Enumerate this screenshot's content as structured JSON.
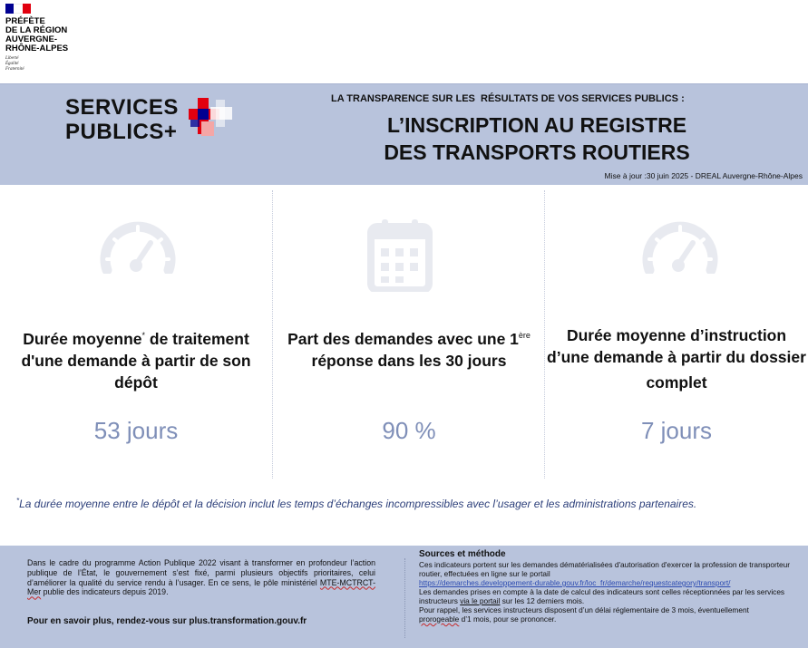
{
  "prefecture": {
    "name_lines": [
      "PRÉFÈTE",
      "DE LA RÉGION",
      "AUVERGNE-",
      "RHÔNE-ALPES"
    ],
    "motto_lines": [
      "Liberté",
      "Égalité",
      "Fraternité"
    ],
    "flag_colors": [
      "#000091",
      "#ffffff",
      "#e1000f"
    ]
  },
  "header": {
    "logo_lines": [
      "SERVICES",
      "PUBLICS+"
    ],
    "kicker": "LA TRANSPARENCE SUR LES  RÉSULTATS DE VOS SERVICES PUBLICS :",
    "title_lines": [
      "L’INSCRIPTION AU REGISTRE",
      "DES TRANSPORTS ROUTIERS"
    ],
    "update": "Mise à jour :30 juin 2025 - DREAL Auvergne-Rhône-Alpes"
  },
  "indicators": [
    {
      "icon": "speedometer-icon",
      "label_before": "Durée moyenne",
      "label_sup": "*",
      "label_after": " de traitement d'une demande à partir de son dépôt",
      "value": "53 jours"
    },
    {
      "icon": "calendar-icon",
      "label_before": "Part des demandes avec une 1",
      "label_sup": "ère",
      "label_after": " réponse dans les 30 jours",
      "value": "90 %"
    },
    {
      "icon": "speedometer-icon",
      "label_before": "Durée moyenne d’instruction d’une demande à partir du dossier complet",
      "label_sup": "",
      "label_after": "",
      "value": "7 jours"
    }
  ],
  "footnote": {
    "mark": "*",
    "text": "La durée moyenne entre le dépôt et la décision inclut les temps d’échanges incompressibles avec l’usager et les administrations partenaires."
  },
  "footer": {
    "left_text_before": "Dans le cadre du programme Action Publique 2022 visant à transformer en profondeur l’action publique de l’État, le gouvernement s’est fixé, parmi plusieurs objectifs prioritaires, celui d’améliorer la qualité du service rendu à l’usager. En ce sens, le pôle ministériel ",
    "left_text_marked": "MTE-MCTRCT-Mer",
    "left_text_after": " publie des indicateurs depuis 2019.",
    "link_line": "Pour en savoir plus, rendez-vous sur  plus.transformation.gouv.fr",
    "sources_title": "Sources et méthode",
    "sources_p1": "Ces indicateurs portent sur les demandes dématérialisées d'autorisation d'exercer la profession de transporteur routier, effectuées en ligne sur le portail",
    "sources_url": "https://demarches.developpement-durable.gouv.fr/loc_fr/demarche/requestcategory/transport/",
    "sources_p2_before": "Les demandes prises en compte à la date de calcul des indicateurs sont celles réceptionnées par les services instructeurs ",
    "sources_p2_underlined": "via le portail",
    "sources_p2_after": " sur les 12 derniers mois.",
    "sources_p3_before": "Pour rappel, les services instructeurs disposent d’un délai réglementaire de 3 mois, éventuellement ",
    "sources_p3_marked": "prorogeable",
    "sources_p3_after": " d’1 mois, pour se prononcer."
  }
}
